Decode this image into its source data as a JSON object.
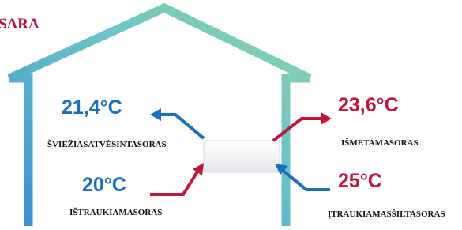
{
  "title": "SARA",
  "readings": [
    {
      "temperature": "21,4°C",
      "label": "ŠVIEŽIASATVĖSINTASORAS"
    },
    {
      "temperature": "20°C",
      "label": "IŠTRAUKIAMASORAS"
    },
    {
      "temperature": "23,6°C",
      "label": "IŠMETAMASORAS"
    },
    {
      "temperature": "25°C",
      "label": "ĮTRAUKIAMASŠILTASORAS"
    }
  ]
}
